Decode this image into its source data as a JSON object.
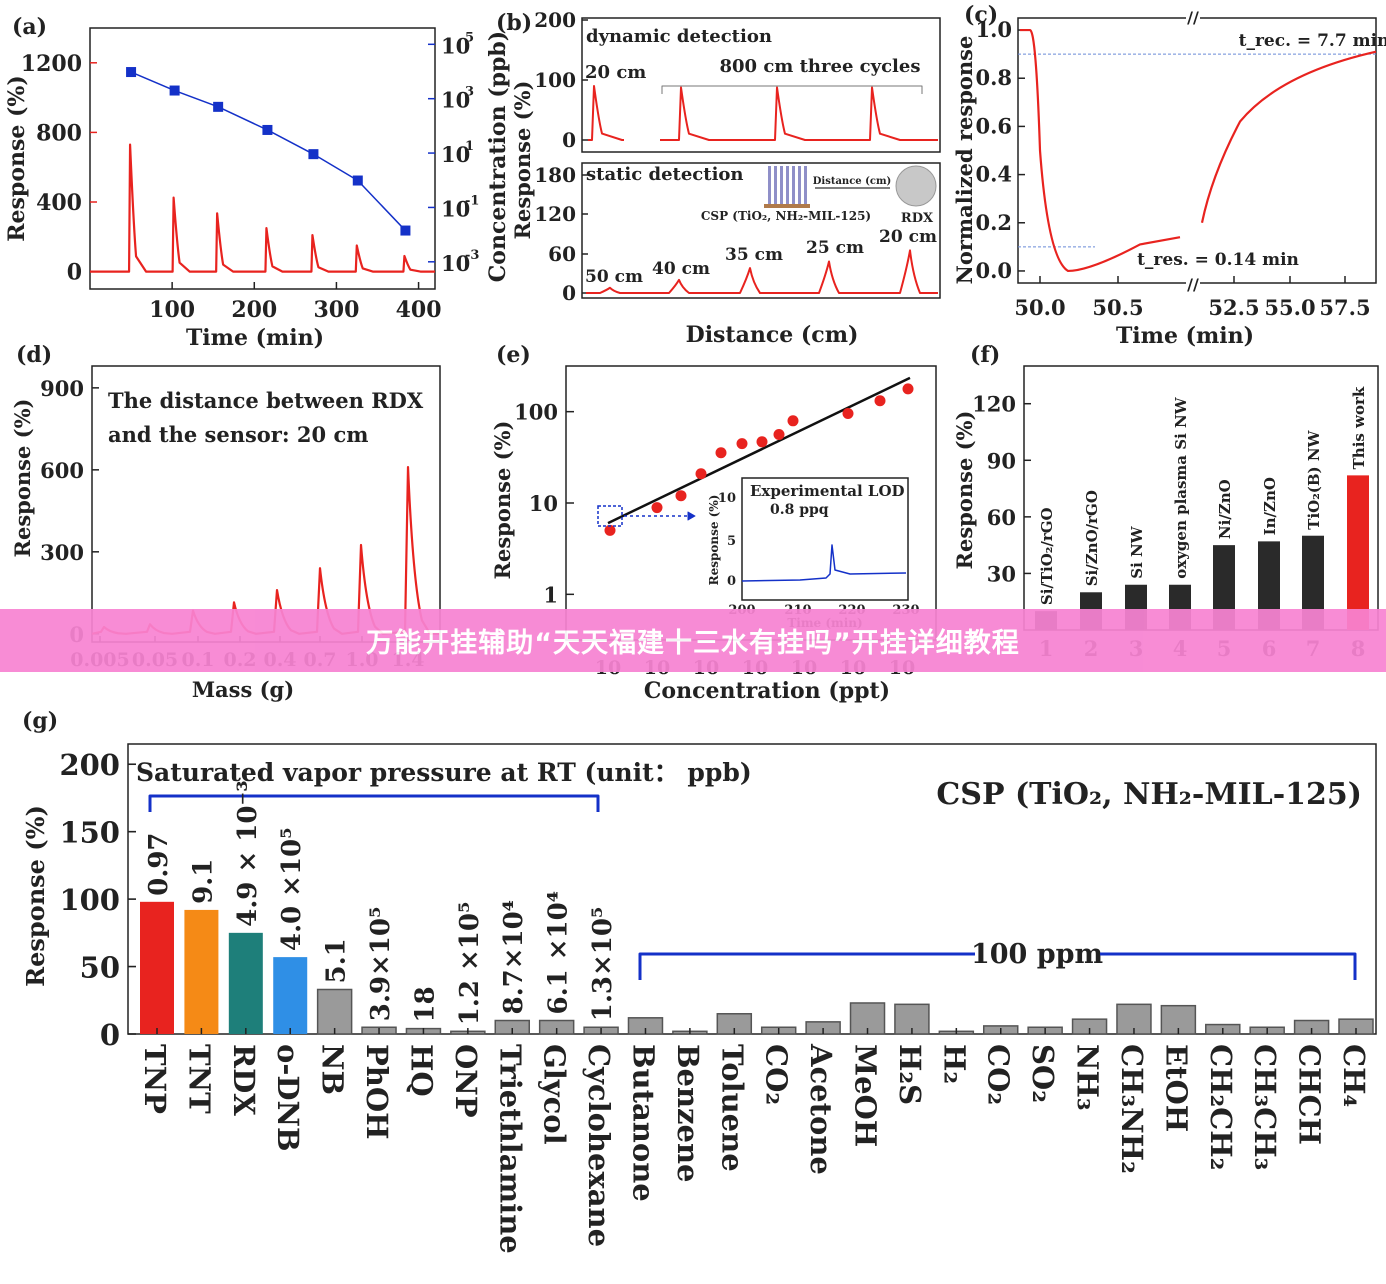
{
  "colors": {
    "red": "#e8231f",
    "blue": "#1431c8",
    "axis": "#222222",
    "gray": "#9a9a9a",
    "dark": "#2a2a2a",
    "orange": "#f58a16",
    "teal": "#1e7f7a",
    "lightblue": "#2f8fe6"
  },
  "banner": {
    "text": "万能开挂辅助“天天福建十三水有挂吗”开挂详细教程"
  },
  "chart_data": [
    {
      "panel": "(a)",
      "type": "line",
      "xlabel": "Time (min)",
      "ylabel": "Response (%)",
      "ylabel2": "Concentration (ppb)",
      "xticks": [
        "100",
        "200",
        "300",
        "400"
      ],
      "yticks": [
        "0",
        "400",
        "800",
        "1200"
      ],
      "y2ticks": [
        "10^-3",
        "10^-1",
        "10^1",
        "10^3",
        "10^5"
      ],
      "xlim": [
        0,
        420
      ],
      "ylim": [
        -100,
        1400
      ],
      "y2lim_log10": [
        -4,
        5.6
      ],
      "peaks": {
        "x": [
          50,
          103,
          156,
          216,
          272,
          326,
          384
        ],
        "y": [
          730,
          425,
          335,
          250,
          210,
          150,
          90
        ]
      },
      "concentration": {
        "x": [
          50,
          103,
          156,
          216,
          272,
          326,
          384
        ],
        "log10_ppb": [
          3.98,
          3.3,
          2.7,
          1.85,
          0.96,
          -0.01,
          -1.85
        ]
      }
    },
    {
      "panel": "(b)",
      "type": "line",
      "xlabel": "Distance (cm)",
      "ylabel": "Response (%)",
      "top": {
        "title": "dynamic detection",
        "yticks": [
          "0",
          "100",
          "200"
        ],
        "labels": [
          "20 cm",
          "800 cm three cycles"
        ],
        "peaks": [
          72,
          70,
          70,
          70
        ]
      },
      "bottom": {
        "title": "static detection",
        "yticks": [
          "0",
          "60",
          "120",
          "180"
        ],
        "labels": [
          "50 cm",
          "40 cm",
          "35 cm",
          "25 cm",
          "20 cm"
        ],
        "peaks": [
          8,
          20,
          38,
          48,
          65
        ],
        "inset": {
          "distance_label": "Distance (cm)",
          "sensor_label": "CSP (TiO₂, NH₂-MIL-125)",
          "rdx_label": "RDX"
        }
      }
    },
    {
      "panel": "(c)",
      "type": "line",
      "xlabel": "Time (min)",
      "ylabel": "Normalized response",
      "xticks": [
        "50.0",
        "50.5",
        "52.5",
        "55.0",
        "57.5"
      ],
      "yticks": [
        "0.0",
        "0.2",
        "0.4",
        "0.6",
        "0.8",
        "1.0"
      ],
      "ylim": [
        -0.05,
        1.05
      ],
      "annotations": [
        "t_rec. = 7.7 min",
        "t_res. = 0.14 min"
      ],
      "response_floor": 0.0,
      "response_start": 1.0,
      "recovery_end": 0.91
    },
    {
      "panel": "(d)",
      "type": "line",
      "xlabel": "Mass (g)",
      "ylabel": "Response (%)",
      "xticks": [
        "0.005",
        "0.05",
        "0.1",
        "0.2",
        "0.4",
        "0.7",
        "1.0",
        "1.4"
      ],
      "yticks": [
        "0",
        "300",
        "600",
        "900"
      ],
      "ylim": [
        -30,
        980
      ],
      "annotation": [
        "The distance between RDX",
        "and the sensor: 20 cm"
      ],
      "peaks": [
        25,
        35,
        85,
        115,
        160,
        240,
        325,
        610
      ]
    },
    {
      "panel": "(e)",
      "type": "scatter",
      "xlabel": "Concentration (ppt)",
      "ylabel": "Response (%)",
      "yticks": [
        "1",
        "10",
        "100"
      ],
      "xtick_text": "10",
      "ylim_log10": [
        -0.5,
        2.5
      ],
      "points_log10": [
        0.7,
        0.95,
        1.08,
        1.32,
        1.55,
        1.65,
        1.67,
        1.75,
        1.9,
        1.98,
        2.12,
        2.25
      ],
      "inset": {
        "title": "Experimental LOD",
        "value": "0.8 ppq",
        "xlabel": "Time (min)",
        "ylabel": "Response (%)",
        "xticks": [
          "200",
          "210",
          "220",
          "230"
        ],
        "yticks": [
          "0",
          "5",
          "10"
        ]
      }
    },
    {
      "panel": "(f)",
      "type": "bar",
      "ylabel": "Response (%)",
      "yticks": [
        "30",
        "60",
        "90",
        "120"
      ],
      "ylim": [
        0,
        140
      ],
      "categories": [
        "1",
        "2",
        "3",
        "4",
        "5",
        "6",
        "7",
        "8"
      ],
      "labels": [
        "Si/TiO₂/rGO",
        "Si/ZnO/rGO",
        "Si NW",
        "oxygen plasma Si NW",
        "Ni/ZnO",
        "In/ZnO",
        "TiO₂(B) NW",
        "This work"
      ],
      "values": [
        10,
        20,
        24,
        24,
        45,
        47,
        50,
        82
      ]
    },
    {
      "panel": "(g)",
      "type": "bar",
      "ylabel": "Response (%)",
      "yticks": [
        "0",
        "50",
        "100",
        "150",
        "200"
      ],
      "ylim": [
        0,
        215
      ],
      "title": "CSP (TiO₂, NH₂-MIL-125)",
      "bracket1": "Saturated vapor pressure at RT (unit： ppb)",
      "bracket2": "100 ppm",
      "categories": [
        "TNP",
        "TNT",
        "RDX",
        "o-DNB",
        "NB",
        "PhOH",
        "HQ",
        "ONP",
        "Triethlamine",
        "Glycol",
        "Cyclohexane",
        "Butanone",
        "Benzene",
        "Toluene",
        "CO₂",
        "Acetone",
        "MeOH",
        "H₂S",
        "H₂",
        "CO₂",
        "SO₂",
        "NH₃",
        "CH₃NH₂",
        "EtOH",
        "CH₂CH₂",
        "CH₃CH₃",
        "CHCH",
        "CH₄"
      ],
      "values": [
        98,
        92,
        75,
        57,
        33,
        5,
        4,
        2,
        10,
        10,
        5,
        12,
        2,
        15,
        5,
        9,
        23,
        22,
        2,
        6,
        5,
        11,
        22,
        21,
        7,
        5,
        10,
        11
      ],
      "pressure_labels": [
        "0.97",
        "9.1",
        "4.9 × 10⁻³",
        "4.0 ×10⁵",
        "5.1",
        "3.9×10⁵",
        "18",
        "1.2 ×10⁵",
        "8.7×10⁴",
        "6.1 ×10⁴",
        "1.3×10⁵"
      ]
    }
  ]
}
